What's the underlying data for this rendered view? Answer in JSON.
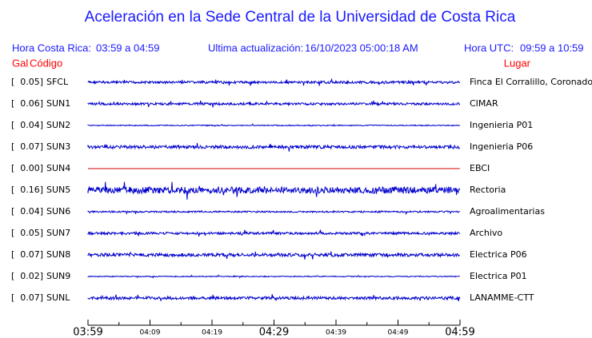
{
  "header": {
    "title": "Aceleración en la Sede Central de la Universidad de Costa Rica",
    "local_label": "Hora Costa Rica:",
    "local_range": "03:59 a 04:59",
    "update_label": "Ultima actualización:",
    "update_value": "16/10/2023 05:00:18 AM",
    "utc_label": "Hora UTC:",
    "utc_range": "09:59 a 10:59"
  },
  "columns": {
    "gal": "Gal",
    "code": "Código",
    "place": "Lugar"
  },
  "rows": [
    {
      "gal": "[  0.05]",
      "code": "SFCL",
      "place": "Finca El Corralillo, Coronado",
      "color": "#0000cc"
    },
    {
      "gal": "[  0.06]",
      "code": "SUN1",
      "place": "CIMAR",
      "color": "#0000cc"
    },
    {
      "gal": "[  0.04]",
      "code": "SUN2",
      "place": "Ingenieria P01",
      "color": "#0000cc"
    },
    {
      "gal": "[  0.07]",
      "code": "SUN3",
      "place": "Ingenieria P06",
      "color": "#0000cc"
    },
    {
      "gal": "[  0.00]",
      "code": "SUN4",
      "place": "EBCI",
      "color": "#cc0000"
    },
    {
      "gal": "[  0.16]",
      "code": "SUN5",
      "place": "Rectoria",
      "color": "#0000cc"
    },
    {
      "gal": "[  0.04]",
      "code": "SUN6",
      "place": "Agroalimentarias",
      "color": "#0000cc"
    },
    {
      "gal": "[  0.05]",
      "code": "SUN7",
      "place": "Archivo",
      "color": "#0000cc"
    },
    {
      "gal": "[  0.07]",
      "code": "SUN8",
      "place": "Electrica P06",
      "color": "#0000cc"
    },
    {
      "gal": "[  0.02]",
      "code": "SUN9",
      "place": "Electrica P01",
      "color": "#0000cc"
    },
    {
      "gal": "[  0.07]",
      "code": "SUNL",
      "place": "LANAMME-CTT",
      "color": "#0000cc"
    }
  ],
  "time_axis": {
    "ticks": [
      "03:59",
      "04:09",
      "04:19",
      "04:29",
      "04:39",
      "04:49",
      "04:59"
    ]
  }
}
